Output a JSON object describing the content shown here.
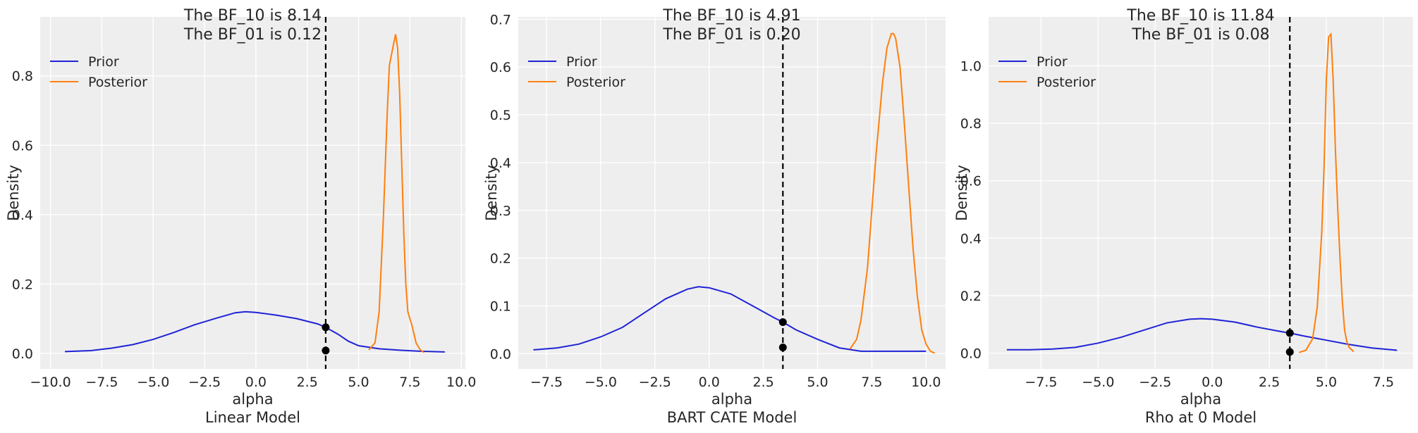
{
  "colors": {
    "prior": "#1f23d6",
    "posterior": "#ff7f0e",
    "reference_line": "#000000",
    "panel_bg": "#eeeeee",
    "grid": "#ffffff"
  },
  "charts": [
    {
      "type": "line",
      "title_lines": [
        "The BF_10 is 8.14",
        "The BF_01 is 0.12"
      ],
      "xlabel": "alpha",
      "subtitle": "Linear Model",
      "ylabel": "Density",
      "xlim": [
        -10.5,
        10.2
      ],
      "ylim": [
        -0.045,
        0.97
      ],
      "xticks": [
        -10.0,
        -7.5,
        -5.0,
        -2.5,
        0.0,
        2.5,
        5.0,
        7.5,
        10.0
      ],
      "xtick_labels": [
        "−10.0",
        "−7.5",
        "−5.0",
        "−2.5",
        "0.0",
        "2.5",
        "5.0",
        "7.5",
        "10.0"
      ],
      "yticks": [
        0.0,
        0.2,
        0.4,
        0.6,
        0.8
      ],
      "ytick_labels": [
        "0.0",
        "0.2",
        "0.4",
        "0.6",
        "0.8"
      ],
      "legend": [
        "Prior",
        "Posterior"
      ],
      "reference_x": 3.4,
      "points": [
        [
          3.4,
          0.075
        ],
        [
          3.4,
          0.008
        ]
      ],
      "series": [
        {
          "name": "Prior",
          "x": [
            -9.3,
            -8.0,
            -7.0,
            -6.0,
            -5.0,
            -4.0,
            -3.0,
            -2.0,
            -1.0,
            -0.5,
            0.0,
            1.0,
            2.0,
            3.0,
            3.4,
            4.0,
            4.5,
            5.0,
            6.0,
            7.0,
            8.0,
            9.2
          ],
          "y": [
            0.005,
            0.008,
            0.015,
            0.025,
            0.04,
            0.06,
            0.082,
            0.1,
            0.117,
            0.12,
            0.118,
            0.11,
            0.1,
            0.085,
            0.075,
            0.055,
            0.035,
            0.022,
            0.013,
            0.009,
            0.006,
            0.004
          ]
        },
        {
          "name": "Posterior",
          "x": [
            5.5,
            5.8,
            6.0,
            6.2,
            6.4,
            6.5,
            6.6,
            6.7,
            6.8,
            6.9,
            7.0,
            7.1,
            7.2,
            7.3,
            7.4,
            7.5,
            7.6,
            7.8,
            8.0,
            8.2
          ],
          "y": [
            0.01,
            0.03,
            0.12,
            0.38,
            0.7,
            0.83,
            0.86,
            0.89,
            0.92,
            0.88,
            0.75,
            0.55,
            0.35,
            0.2,
            0.12,
            0.1,
            0.08,
            0.03,
            0.01,
            0.002
          ]
        }
      ]
    },
    {
      "type": "line",
      "title_lines": [
        "The BF_10 is 4.91",
        "The BF_01 is 0.20"
      ],
      "xlabel": "alpha",
      "subtitle": "BART CATE Model",
      "ylabel": "Density",
      "xlim": [
        -8.8,
        10.9
      ],
      "ylim": [
        -0.032,
        0.705
      ],
      "xticks": [
        -7.5,
        -5.0,
        -2.5,
        0.0,
        2.5,
        5.0,
        7.5,
        10.0
      ],
      "xtick_labels": [
        "−7.5",
        "−5.0",
        "−2.5",
        "0.0",
        "2.5",
        "5.0",
        "7.5",
        "10.0"
      ],
      "yticks": [
        0.0,
        0.1,
        0.2,
        0.3,
        0.4,
        0.5,
        0.6,
        0.7
      ],
      "ytick_labels": [
        "0.0",
        "0.1",
        "0.2",
        "0.3",
        "0.4",
        "0.5",
        "0.6",
        "0.7"
      ],
      "legend": [
        "Prior",
        "Posterior"
      ],
      "reference_x": 3.4,
      "points": [
        [
          3.4,
          0.066
        ],
        [
          3.4,
          0.013
        ]
      ],
      "series": [
        {
          "name": "Prior",
          "x": [
            -8.1,
            -7.0,
            -6.0,
            -5.0,
            -4.0,
            -3.0,
            -2.0,
            -1.0,
            -0.5,
            0.0,
            1.0,
            2.0,
            3.0,
            3.4,
            4.0,
            5.0,
            6.0,
            7.0,
            8.0,
            9.0,
            10.0
          ],
          "y": [
            0.008,
            0.012,
            0.02,
            0.035,
            0.055,
            0.085,
            0.115,
            0.135,
            0.14,
            0.138,
            0.125,
            0.1,
            0.075,
            0.066,
            0.05,
            0.03,
            0.012,
            0.005,
            0.005,
            0.005,
            0.005
          ]
        },
        {
          "name": "Posterior",
          "x": [
            6.5,
            6.8,
            7.0,
            7.3,
            7.5,
            7.7,
            8.0,
            8.2,
            8.4,
            8.5,
            8.6,
            8.8,
            9.0,
            9.2,
            9.4,
            9.6,
            9.8,
            10.0,
            10.2,
            10.4
          ],
          "y": [
            0.01,
            0.03,
            0.07,
            0.18,
            0.3,
            0.42,
            0.57,
            0.64,
            0.67,
            0.67,
            0.66,
            0.6,
            0.48,
            0.35,
            0.22,
            0.12,
            0.05,
            0.02,
            0.005,
            0.001
          ]
        }
      ]
    },
    {
      "type": "line",
      "title_lines": [
        "The BF_10 is 11.84",
        "The BF_01 is 0.08"
      ],
      "xlabel": "alpha",
      "subtitle": "Rho at 0 Model",
      "ylabel": "Density",
      "xlim": [
        -9.8,
        8.8
      ],
      "ylim": [
        -0.055,
        1.17
      ],
      "xticks": [
        -7.5,
        -5.0,
        -2.5,
        0.0,
        2.5,
        5.0,
        7.5
      ],
      "xtick_labels": [
        "−7.5",
        "−5.0",
        "−2.5",
        "0.0",
        "2.5",
        "5.0",
        "7.5"
      ],
      "yticks": [
        0.0,
        0.2,
        0.4,
        0.6,
        0.8,
        1.0
      ],
      "ytick_labels": [
        "0.0",
        "0.2",
        "0.4",
        "0.6",
        "0.8",
        "1.0"
      ],
      "legend": [
        "Prior",
        "Posterior"
      ],
      "reference_x": 3.4,
      "points": [
        [
          3.4,
          0.07
        ],
        [
          3.4,
          0.004
        ]
      ],
      "series": [
        {
          "name": "Prior",
          "x": [
            -9.0,
            -8.0,
            -7.0,
            -6.0,
            -5.0,
            -4.0,
            -3.0,
            -2.0,
            -1.0,
            -0.5,
            0.0,
            1.0,
            2.0,
            3.0,
            3.4,
            4.0,
            5.0,
            6.0,
            7.0,
            8.1
          ],
          "y": [
            0.012,
            0.012,
            0.014,
            0.02,
            0.035,
            0.055,
            0.08,
            0.105,
            0.118,
            0.12,
            0.118,
            0.108,
            0.09,
            0.075,
            0.07,
            0.06,
            0.045,
            0.03,
            0.018,
            0.01
          ]
        },
        {
          "name": "Posterior",
          "x": [
            3.8,
            4.1,
            4.4,
            4.6,
            4.8,
            4.9,
            5.0,
            5.1,
            5.2,
            5.3,
            5.4,
            5.5,
            5.6,
            5.7,
            5.8,
            5.9,
            6.0,
            6.2
          ],
          "y": [
            0.002,
            0.01,
            0.05,
            0.16,
            0.42,
            0.65,
            0.95,
            1.1,
            1.11,
            0.95,
            0.7,
            0.5,
            0.33,
            0.18,
            0.08,
            0.04,
            0.02,
            0.005
          ]
        }
      ]
    }
  ]
}
